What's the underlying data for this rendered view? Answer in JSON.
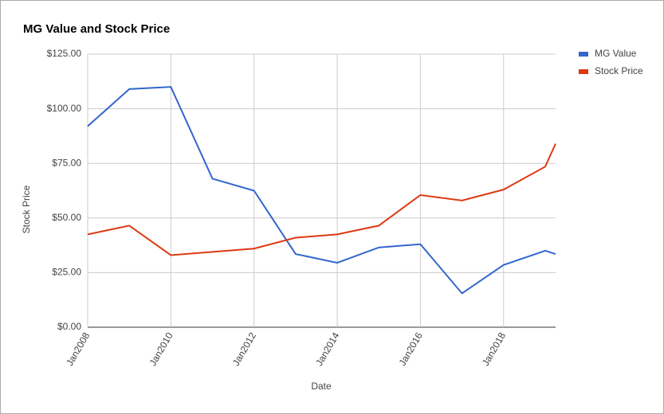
{
  "chart_data": {
    "type": "line",
    "title": "MG Value and Stock Price",
    "x_label": "Date",
    "y_label": "Stock Price",
    "x": [
      "2008-01",
      "2009-01",
      "2010-01",
      "2011-01",
      "2012-01",
      "2013-01",
      "2014-01",
      "2015-01",
      "2016-01",
      "2017-01",
      "2018-01",
      "2019-01",
      "2019-04"
    ],
    "xlim": [
      "2008-01",
      "2019-04"
    ],
    "xticks": [
      {
        "value": "2008-01",
        "label": "Jan2008"
      },
      {
        "value": "2010-01",
        "label": "Jan2010"
      },
      {
        "value": "2012-01",
        "label": "Jan2012"
      },
      {
        "value": "2014-01",
        "label": "Jan2014"
      },
      {
        "value": "2016-01",
        "label": "Jan2016"
      },
      {
        "value": "2018-01",
        "label": "Jan2018"
      }
    ],
    "ylim": [
      0,
      125
    ],
    "yticks": [
      {
        "value": 0,
        "label": "$0.00"
      },
      {
        "value": 25,
        "label": "$25.00"
      },
      {
        "value": 50,
        "label": "$50.00"
      },
      {
        "value": 75,
        "label": "$75.00"
      },
      {
        "value": 100,
        "label": "$100.00"
      },
      {
        "value": 125,
        "label": "$125.00"
      }
    ],
    "grid": true,
    "legend": "right",
    "series": [
      {
        "name": "MG Value",
        "color": "#3366cc",
        "values": [
          92,
          109,
          110,
          68,
          62.5,
          33.5,
          29.5,
          36.5,
          38,
          15.5,
          28.5,
          35,
          33.5
        ]
      },
      {
        "name": "Stock Price",
        "color": "#dc3912",
        "values": [
          42.5,
          46.5,
          33,
          34.5,
          36,
          41,
          42.5,
          46.5,
          60.5,
          58,
          63,
          73.5,
          84
        ]
      }
    ]
  }
}
